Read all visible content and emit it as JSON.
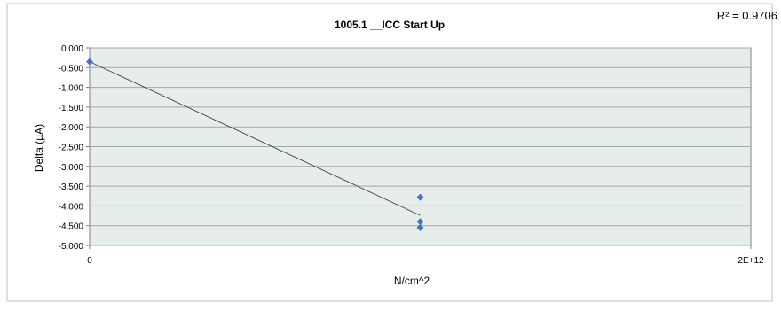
{
  "chart_data": {
    "type": "scatter",
    "title": "1005.1 __ICC Start Up",
    "annotation": "R² = 0.9706",
    "xlabel": "N/cm^2",
    "ylabel": "Delta (µA)",
    "xlim": [
      0,
      2000000000000
    ],
    "ylim": [
      -5.0,
      0.0
    ],
    "x_tick_labels": [
      "0",
      "2E+12"
    ],
    "y_tick_labels": [
      "0.000",
      "-0.500",
      "-1.000",
      "-1.500",
      "-2.000",
      "-2.500",
      "-3.000",
      "-3.500",
      "-4.000",
      "-4.500",
      "-5.000"
    ],
    "y_ticks": [
      0.0,
      -0.5,
      -1.0,
      -1.5,
      -2.0,
      -2.5,
      -3.0,
      -3.5,
      -4.0,
      -4.5,
      -5.0
    ],
    "grid": true,
    "legend": "none",
    "series": [
      {
        "points": [
          {
            "x": 0,
            "y": -0.35
          },
          {
            "x": 1000000000000,
            "y": -3.78
          },
          {
            "x": 1000000000000,
            "y": -4.4
          },
          {
            "x": 1000000000000,
            "y": -4.55
          }
        ]
      }
    ],
    "trendline": {
      "type": "linear",
      "from": {
        "x": 0,
        "y": -0.35
      },
      "to": {
        "x": 1000000000000,
        "y": -4.24
      }
    },
    "colors": {
      "marker": "#4472c4",
      "plot_background": "#e6eeec",
      "gridline": "#a6a6a6",
      "trendline": "#404040"
    }
  }
}
